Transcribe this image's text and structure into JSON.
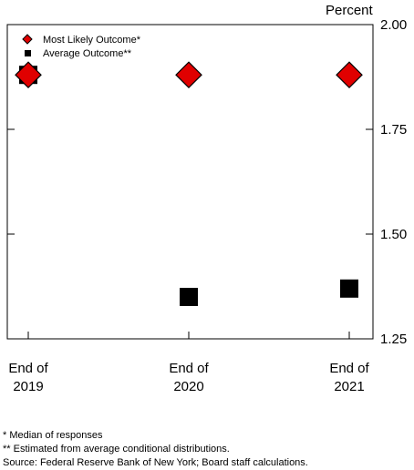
{
  "chart_data": {
    "type": "scatter",
    "title": "",
    "ylabel": "Percent",
    "ylim": [
      1.25,
      2.0
    ],
    "yticks": [
      "2.00",
      "1.75",
      "1.50",
      "1.25"
    ],
    "ytick_values": [
      2.0,
      1.75,
      1.5,
      1.25
    ],
    "categories": [
      [
        "End of",
        "2019"
      ],
      [
        "End of",
        "2020"
      ],
      [
        "End of",
        "2021"
      ]
    ],
    "legend_position": "top-left",
    "series": [
      {
        "name": "Most Likely Outcome*",
        "marker": "diamond",
        "color": "#e00000",
        "values": [
          1.88,
          1.88,
          1.88
        ]
      },
      {
        "name": "Average Outcome**",
        "marker": "square",
        "color": "#000000",
        "values": [
          1.88,
          1.35,
          1.37
        ]
      }
    ]
  },
  "notes": [
    "* Median of responses",
    "** Estimated from average conditional distributions.",
    "Source: Federal Reserve Bank of New York; Board staff calculations."
  ]
}
